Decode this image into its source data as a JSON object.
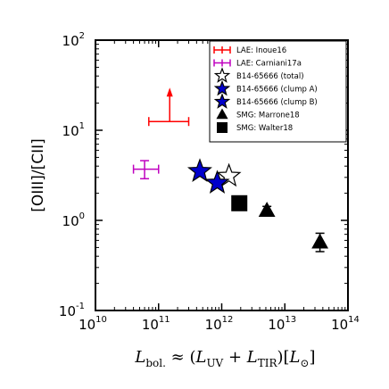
{
  "chart_data": {
    "type": "scatter",
    "xscale": "log",
    "yscale": "log",
    "xlim": [
      10000000000.0,
      100000000000000.0
    ],
    "ylim": [
      0.1,
      100
    ],
    "xticks": [
      {
        "base": "10",
        "exp": "10",
        "value": 10000000000.0
      },
      {
        "base": "10",
        "exp": "11",
        "value": 100000000000.0
      },
      {
        "base": "10",
        "exp": "12",
        "value": 1000000000000.0
      },
      {
        "base": "10",
        "exp": "13",
        "value": 10000000000000.0
      },
      {
        "base": "10",
        "exp": "14",
        "value": 100000000000000.0
      }
    ],
    "yticks": [
      {
        "base": "10",
        "exp": "-1",
        "value": 0.1
      },
      {
        "base": "10",
        "exp": "0",
        "value": 1
      },
      {
        "base": "10",
        "exp": "1",
        "value": 10
      },
      {
        "base": "10",
        "exp": "2",
        "value": 100
      }
    ],
    "ylabel": "[OIII]/[CII]",
    "xlabel": "L_bol. ≈ (L_UV + L_TIR)[L_⊙]",
    "xlabel_parts": {
      "L": "L",
      "bol": "bol.",
      "approx": " ≈ (",
      "UV": "UV",
      "plus": " + ",
      "TIR": "TIR",
      "close": ")[",
      "sun": "⊙",
      "end": "]"
    },
    "legend_position": "top-right",
    "series": [
      {
        "name": "LAE: Inoue16",
        "color": "#ff0000",
        "marker": "none",
        "points": [
          {
            "x": 150000000000.0,
            "y": 12.5,
            "xerr_lo": 80000000000.0,
            "xerr_hi": 150000000000.0,
            "lower_limit": true
          }
        ]
      },
      {
        "name": "LAE: Carniani17a",
        "color": "#bf00bf",
        "marker": "none",
        "points": [
          {
            "x": 60000000000.0,
            "y": 3.7,
            "xerr_lo": 20000000000.0,
            "xerr_hi": 40000000000.0,
            "yerr_lo": 0.8,
            "yerr_hi": 0.9
          }
        ]
      },
      {
        "name": "B14-65666 (total)",
        "color": "#ffffff",
        "marker": "star",
        "points": [
          {
            "x": 1300000000000.0,
            "y": 3.1
          }
        ]
      },
      {
        "name": "B14-65666 (clump A)",
        "color": "#0000cc",
        "marker": "star",
        "points": [
          {
            "x": 450000000000.0,
            "y": 3.5
          }
        ]
      },
      {
        "name": "B14-65666 (clump B)",
        "color": "#0000cc",
        "marker": "star",
        "points": [
          {
            "x": 850000000000.0,
            "y": 2.6
          }
        ]
      },
      {
        "name": "SMG: Marrone18",
        "color": "#000000",
        "marker": "triangle",
        "points": [
          {
            "x": 5200000000000.0,
            "y": 1.28,
            "yerr_lo": 0.15,
            "yerr_hi": 0.15
          },
          {
            "x": 36000000000000.0,
            "y": 0.57,
            "yerr_lo": 0.12,
            "yerr_hi": 0.15
          }
        ]
      },
      {
        "name": "SMG: Walter18",
        "color": "#000000",
        "marker": "square",
        "points": [
          {
            "x": 1900000000000.0,
            "y": 1.55
          }
        ]
      }
    ]
  }
}
